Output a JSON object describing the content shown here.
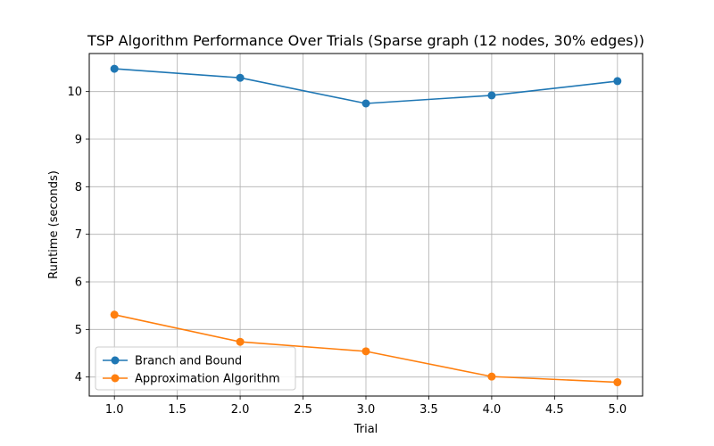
{
  "chart_data": {
    "type": "line",
    "title": "TSP Algorithm Performance Over Trials (Sparse graph (12 nodes, 30% edges))",
    "xlabel": "Trial",
    "ylabel": "Runtime (seconds)",
    "x": [
      1.0,
      2.0,
      3.0,
      4.0,
      5.0
    ],
    "xlim": [
      0.8,
      5.2
    ],
    "ylim": [
      3.6,
      10.8
    ],
    "xticks": [
      "1.0",
      "1.5",
      "2.0",
      "2.5",
      "3.0",
      "3.5",
      "4.0",
      "4.5",
      "5.0"
    ],
    "xtick_values": [
      1.0,
      1.5,
      2.0,
      2.5,
      3.0,
      3.5,
      4.0,
      4.5,
      5.0
    ],
    "yticks": [
      "4",
      "5",
      "6",
      "7",
      "8",
      "9",
      "10"
    ],
    "ytick_values": [
      4,
      5,
      6,
      7,
      8,
      9,
      10
    ],
    "grid": true,
    "legend_position": "lower-left",
    "series": [
      {
        "name": "Branch and Bound",
        "color": "#1f77b4",
        "values": [
          10.48,
          10.29,
          9.75,
          9.92,
          10.22
        ]
      },
      {
        "name": "Approximation Algorithm",
        "color": "#ff7f0e",
        "values": [
          5.31,
          4.74,
          4.54,
          4.01,
          3.89
        ]
      }
    ]
  }
}
